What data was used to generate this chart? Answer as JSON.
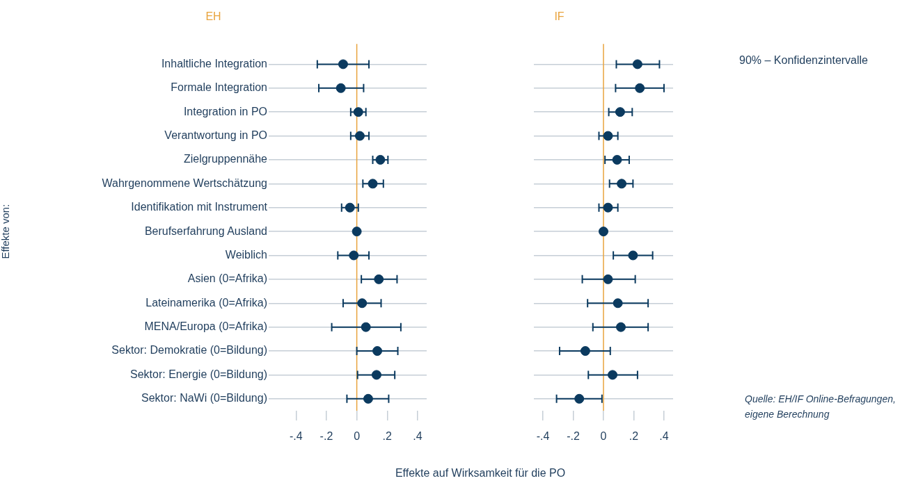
{
  "chart_data": [
    {
      "type": "scatter",
      "title": "EH",
      "ylabel": "Effekte von:",
      "xlabel": "Effekte auf Wirksamkeit für die PO",
      "orientation": "horizontal",
      "categories": [
        "Inhaltliche Integration",
        "Formale Integration",
        "Integration in PO",
        "Verantwortung in PO",
        "Zielgruppennähe",
        "Wahrgenommene Wertschätzung",
        "Identifikation mit Instrument",
        "Berufserfahrung Ausland",
        "Weiblich",
        "Asien (0=Afrika)",
        "Lateinamerika (0=Afrika)",
        "MENA/Europa (0=Afrika)",
        "Sektor: Demokratie (0=Bildung)",
        "Sektor: Energie (0=Bildung)",
        "Sektor: NaWi (0=Bildung)"
      ],
      "values": [
        -0.09,
        -0.105,
        0.01,
        0.02,
        0.155,
        0.105,
        -0.045,
        0,
        -0.02,
        0.145,
        0.035,
        0.06,
        0.135,
        0.13,
        0.075
      ],
      "errors": [
        [
          -0.26,
          0.08
        ],
        [
          -0.25,
          0.045
        ],
        [
          -0.04,
          0.06
        ],
        [
          -0.04,
          0.08
        ],
        [
          0.105,
          0.205
        ],
        [
          0.04,
          0.175
        ],
        [
          -0.1,
          0.01
        ],
        null,
        [
          -0.125,
          0.08
        ],
        [
          0.03,
          0.265
        ],
        [
          -0.09,
          0.16
        ],
        [
          -0.165,
          0.29
        ],
        [
          0,
          0.27
        ],
        [
          0.005,
          0.25
        ],
        [
          -0.065,
          0.21
        ]
      ],
      "color": "#0b3a5f",
      "marker": "circle",
      "grid": "y",
      "xlim": [
        -0.58,
        0.46
      ],
      "xticks": [
        {
          "value": -0.4,
          "label": "-.4"
        },
        {
          "value": -0.2,
          "label": "-.2"
        },
        0,
        {
          "value": 0.2,
          "label": ".2"
        },
        {
          "value": 0.4,
          "label": ".4"
        }
      ],
      "ref_lines": [
        {
          "axis": "x",
          "value": 0,
          "color": "#e8a33d"
        }
      ]
    },
    {
      "type": "scatter",
      "title": "IF",
      "orientation": "horizontal",
      "tick_labels": "x",
      "categories": [
        null,
        null,
        null,
        null,
        null,
        null,
        null,
        null,
        null,
        null,
        null,
        null,
        null,
        null,
        null
      ],
      "values": [
        0.225,
        0.24,
        0.11,
        0.03,
        0.09,
        0.12,
        0.03,
        0,
        0.195,
        0.03,
        0.095,
        0.115,
        -0.12,
        0.06,
        -0.16
      ],
      "errors": [
        [
          0.085,
          0.37
        ],
        [
          0.08,
          0.4
        ],
        [
          0.035,
          0.19
        ],
        [
          -0.03,
          0.095
        ],
        [
          0.01,
          0.17
        ],
        [
          0.04,
          0.195
        ],
        [
          -0.03,
          0.095
        ],
        null,
        [
          0.065,
          0.325
        ],
        [
          -0.14,
          0.21
        ],
        [
          -0.105,
          0.295
        ],
        [
          -0.07,
          0.295
        ],
        [
          -0.29,
          0.045
        ],
        [
          -0.1,
          0.225
        ],
        [
          -0.31,
          -0.01
        ]
      ],
      "color": "#0b3a5f",
      "marker": "circle",
      "grid": "y",
      "xlim": [
        -0.46,
        0.46
      ],
      "xticks": [
        {
          "value": -0.4,
          "label": "-.4"
        },
        {
          "value": -0.2,
          "label": "-.2"
        },
        0,
        {
          "value": 0.2,
          "label": ".2"
        },
        {
          "value": 0.4,
          "label": ".4"
        }
      ],
      "ref_lines": [
        {
          "axis": "x",
          "value": 0,
          "color": "#e8a33d"
        }
      ],
      "annotations": [
        "90% – Konfidenzintervalle",
        "Quelle: EH/IF Online-Befragungen, eigene Berechnung"
      ]
    }
  ]
}
